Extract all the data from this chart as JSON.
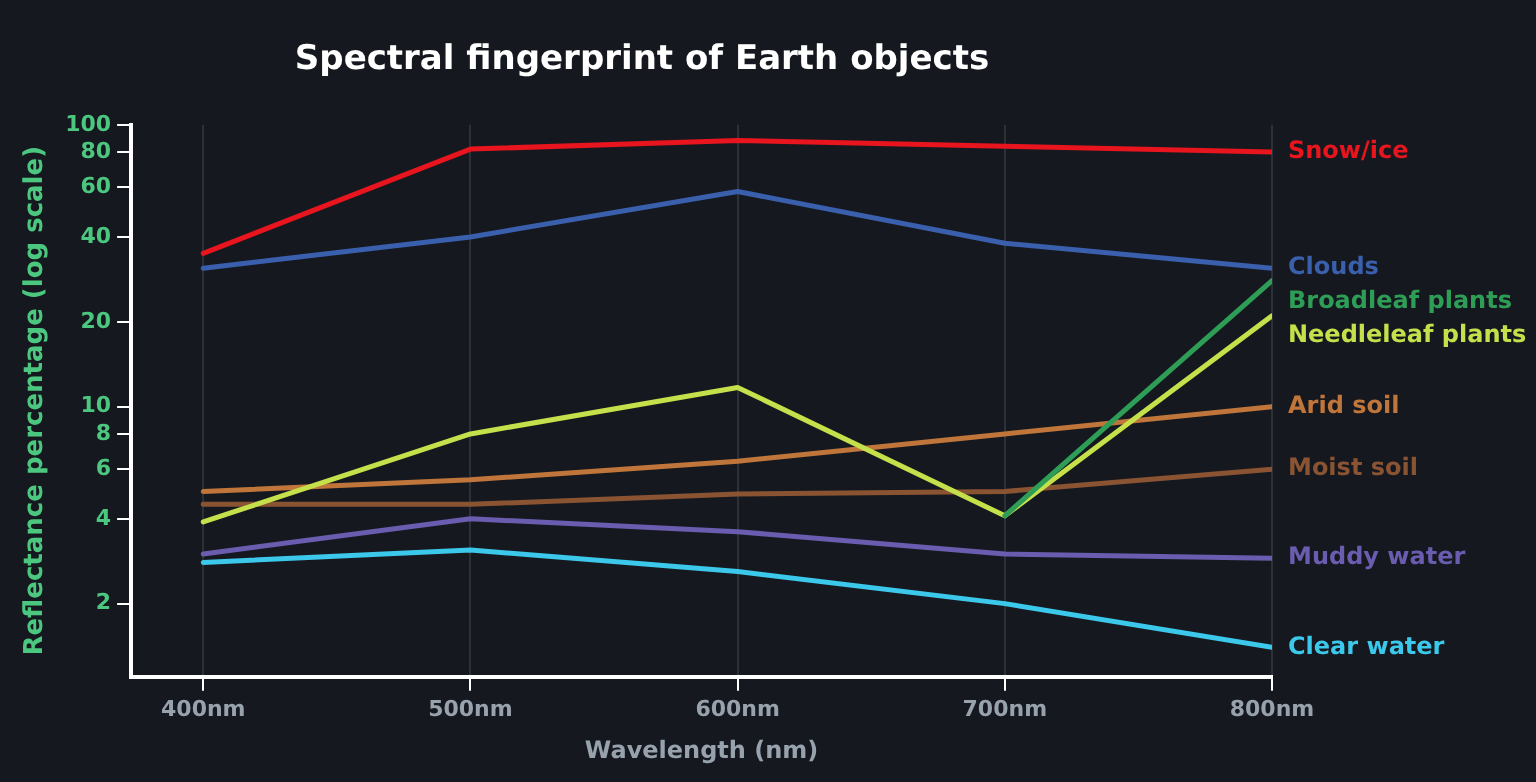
{
  "chart_data": {
    "type": "line",
    "title": "Spectral fingerprint of Earth objects",
    "xlabel": "Wavelength (nm)",
    "ylabel": "Reflectance percentage (log scale)",
    "x": [
      400,
      500,
      600,
      700,
      800
    ],
    "xlim": [
      373,
      800
    ],
    "xticks": [
      {
        "value": 400,
        "label": "400nm"
      },
      {
        "value": 500,
        "label": "500nm"
      },
      {
        "value": 600,
        "label": "600nm"
      },
      {
        "value": 700,
        "label": "700nm"
      },
      {
        "value": 800,
        "label": "800nm"
      }
    ],
    "ylim": [
      1.1,
      100
    ],
    "yticks": [
      2,
      4,
      6,
      8,
      10,
      20,
      40,
      60,
      80,
      100
    ],
    "log": "y",
    "grid": "x",
    "legend": false,
    "marker": "none",
    "line_style": "solid",
    "series": [
      {
        "name": "Snow/ice",
        "color": "#e8141e",
        "values": [
          35,
          82,
          88,
          84,
          80
        ]
      },
      {
        "name": "Clouds",
        "color": "#3a5fad",
        "values": [
          31,
          40,
          58,
          38,
          31
        ]
      },
      {
        "name": "Broadleaf plants",
        "color": "#2e9e57",
        "values": [
          null,
          null,
          null,
          4.1,
          28
        ]
      },
      {
        "name": "Needleleaf plants",
        "color": "#c5e04a",
        "values": [
          3.9,
          8,
          11.7,
          4.1,
          21
        ]
      },
      {
        "name": "Arid soil",
        "color": "#c0763a",
        "values": [
          5,
          5.5,
          6.4,
          8,
          10
        ]
      },
      {
        "name": "Moist soil",
        "color": "#8a5433",
        "values": [
          4.5,
          4.5,
          4.9,
          5,
          6
        ]
      },
      {
        "name": "Muddy water",
        "color": "#6a5cae",
        "values": [
          3,
          4,
          3.6,
          3,
          2.9
        ]
      },
      {
        "name": "Clear water",
        "color": "#3cc8ea",
        "values": [
          2.8,
          3.1,
          2.6,
          2,
          1.4
        ]
      }
    ]
  }
}
